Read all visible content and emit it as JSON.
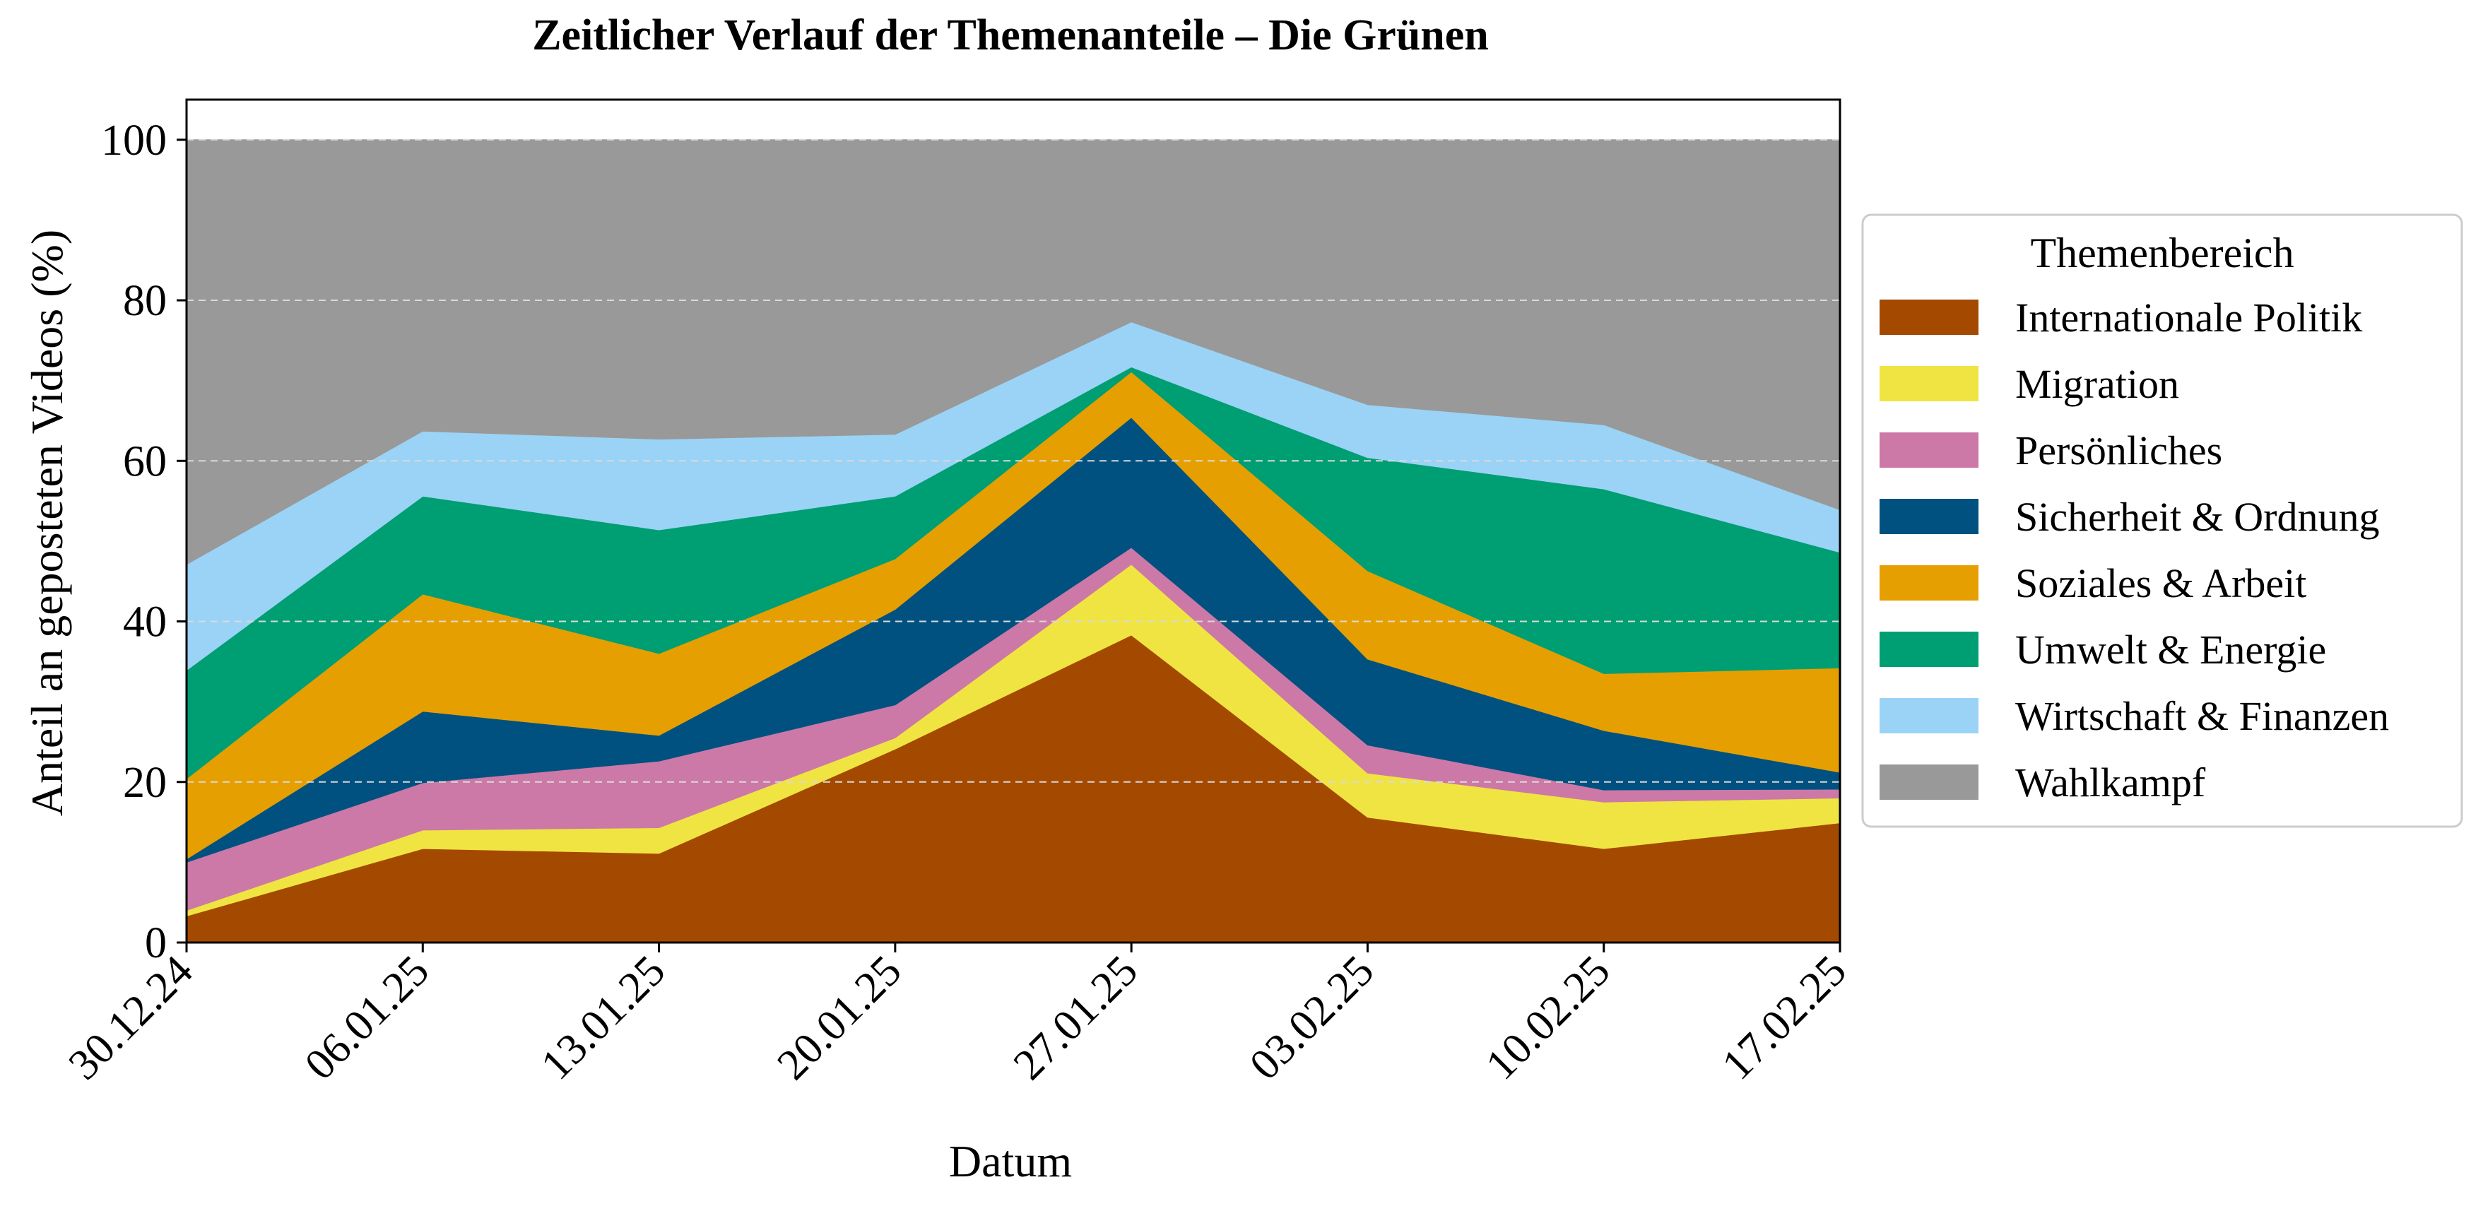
{
  "chart_data": {
    "type": "area",
    "stacked": true,
    "title": "Zeitlicher Verlauf der Themenanteile – Die Grünen",
    "xlabel": "Datum",
    "ylabel": "Anteil an geposteten Videos (%)",
    "x": [
      "30.12.24",
      "06.01.25",
      "13.01.25",
      "20.01.25",
      "27.01.25",
      "03.02.25",
      "10.02.25",
      "17.02.25"
    ],
    "ylim": [
      0,
      105
    ],
    "yticks": [
      "0",
      "20",
      "40",
      "60",
      "80",
      "100"
    ],
    "grid": "horizontal-dashed",
    "legend": {
      "title": "Themenbereich",
      "placement": "right"
    },
    "series": [
      {
        "name": "Internationale Politik",
        "color": "#A44A00",
        "values": [
          3.3,
          11.7,
          11.1,
          24.1,
          38.3,
          15.6,
          11.7,
          14.9
        ]
      },
      {
        "name": "Migration",
        "color": "#F0E442",
        "values": [
          0.7,
          2.3,
          3.2,
          1.4,
          8.8,
          5.5,
          5.8,
          3.1
        ]
      },
      {
        "name": "Persönliches",
        "color": "#CC79A7",
        "values": [
          6.0,
          5.9,
          8.3,
          4.1,
          2.1,
          3.5,
          1.5,
          1.1
        ]
      },
      {
        "name": "Sicherheit & Ordnung",
        "color": "#005180",
        "values": [
          0.4,
          8.9,
          3.2,
          11.9,
          16.2,
          10.7,
          7.4,
          2.1
        ]
      },
      {
        "name": "Soziales & Arbeit",
        "color": "#E69F00",
        "values": [
          10.0,
          14.6,
          10.2,
          6.3,
          5.7,
          11.0,
          7.1,
          13.0
        ]
      },
      {
        "name": "Umwelt & Energie",
        "color": "#009E73",
        "values": [
          13.5,
          12.2,
          15.4,
          7.8,
          0.6,
          14.1,
          23.0,
          14.4
        ]
      },
      {
        "name": "Wirtschaft & Finanzen",
        "color": "#9AD3F6",
        "values": [
          13.2,
          8.1,
          11.3,
          7.7,
          5.6,
          6.6,
          8.0,
          5.3
        ]
      },
      {
        "name": "Wahlkampf",
        "color": "#999999",
        "values": [
          52.9,
          36.3,
          37.3,
          36.7,
          22.7,
          33.0,
          35.5,
          46.1
        ]
      }
    ]
  }
}
